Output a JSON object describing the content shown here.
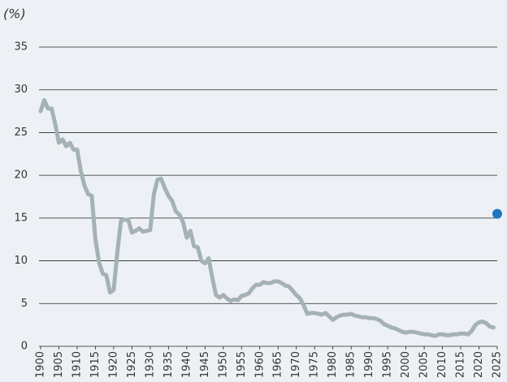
{
  "chart_data": {
    "type": "line",
    "y_label": "(%)",
    "series": [
      {
        "color": "#a5b2b5",
        "x": [
          1900,
          1901,
          1902,
          1903,
          1904,
          1905,
          1906,
          1907,
          1908,
          1909,
          1910,
          1911,
          1912,
          1913,
          1914,
          1915,
          1916,
          1917,
          1918,
          1919,
          1920,
          1921,
          1922,
          1923,
          1924,
          1925,
          1926,
          1927,
          1928,
          1929,
          1930,
          1931,
          1932,
          1933,
          1934,
          1935,
          1936,
          1937,
          1938,
          1939,
          1940,
          1941,
          1942,
          1943,
          1944,
          1945,
          1946,
          1947,
          1948,
          1949,
          1950,
          1951,
          1952,
          1953,
          1954,
          1955,
          1956,
          1957,
          1958,
          1959,
          1960,
          1961,
          1962,
          1963,
          1964,
          1965,
          1966,
          1967,
          1968,
          1969,
          1970,
          1971,
          1972,
          1973,
          1974,
          1975,
          1976,
          1977,
          1978,
          1979,
          1980,
          1981,
          1982,
          1983,
          1984,
          1985,
          1986,
          1987,
          1988,
          1989,
          1990,
          1991,
          1992,
          1993,
          1994,
          1995,
          1996,
          1997,
          1998,
          1999,
          2000,
          2001,
          2002,
          2003,
          2004,
          2005,
          2006,
          2007,
          2008,
          2009,
          2010,
          2011,
          2012,
          2013,
          2014,
          2015,
          2016,
          2017,
          2018,
          2019,
          2020,
          2021,
          2022,
          2023,
          2024
        ],
        "values": [
          27.5,
          28.8,
          27.8,
          27.8,
          26,
          23.8,
          24.2,
          23.4,
          23.8,
          23,
          23,
          20.5,
          18.8,
          17.8,
          17.6,
          12.5,
          9.8,
          8.5,
          8.3,
          6.3,
          6.6,
          11,
          14.7,
          14.8,
          14.8,
          13.3,
          13.5,
          13.8,
          13.4,
          13.5,
          13.6,
          17.8,
          19.5,
          19.6,
          18.5,
          17.6,
          17,
          15.8,
          15.4,
          14.5,
          12.7,
          13.5,
          11.7,
          11.6,
          10,
          9.7,
          10.3,
          8,
          6,
          5.7,
          6,
          5.6,
          5.3,
          5.5,
          5.4,
          5.9,
          6,
          6.2,
          6.8,
          7.2,
          7.2,
          7.5,
          7.4,
          7.4,
          7.6,
          7.6,
          7.4,
          7.1,
          7,
          6.5,
          6,
          5.6,
          4.8,
          3.8,
          3.9,
          3.9,
          3.8,
          3.7,
          3.9,
          3.5,
          3.1,
          3.4,
          3.6,
          3.7,
          3.7,
          3.8,
          3.6,
          3.5,
          3.4,
          3.4,
          3.3,
          3.3,
          3.2,
          3,
          2.6,
          2.4,
          2.2,
          2.1,
          1.9,
          1.7,
          1.6,
          1.7,
          1.7,
          1.6,
          1.5,
          1.4,
          1.4,
          1.3,
          1.2,
          1.4,
          1.4,
          1.3,
          1.3,
          1.4,
          1.4,
          1.5,
          1.5,
          1.4,
          1.8,
          2.5,
          2.8,
          2.9,
          2.7,
          2.3,
          2.2
        ]
      },
      {
        "color": "#1f78c1",
        "x": [
          2025
        ],
        "values": [
          15.5
        ],
        "marker": "circle"
      }
    ],
    "xlim": [
      1900,
      2025
    ],
    "xticks": [
      1900,
      1905,
      1910,
      1915,
      1920,
      1925,
      1930,
      1935,
      1940,
      1945,
      1950,
      1955,
      1960,
      1965,
      1970,
      1975,
      1980,
      1985,
      1990,
      1995,
      2000,
      2005,
      2010,
      2015,
      2020,
      2025
    ],
    "ylim": [
      0,
      35
    ],
    "yticks": [
      0,
      5,
      10,
      15,
      20,
      25,
      30,
      35
    ],
    "grid": true
  }
}
